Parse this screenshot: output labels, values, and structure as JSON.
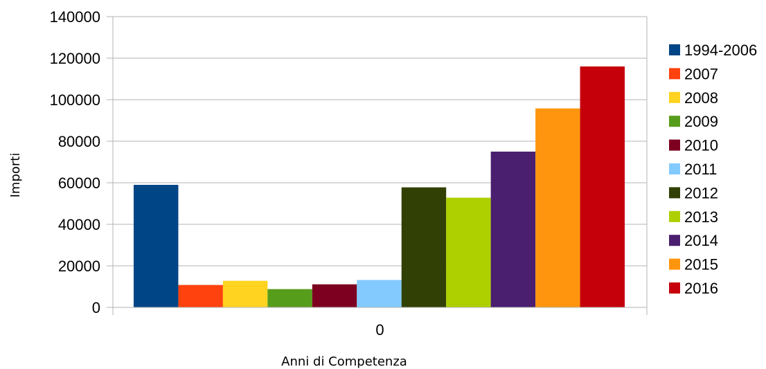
{
  "chart_data": {
    "type": "bar",
    "categories": [
      "0"
    ],
    "series": [
      {
        "name": "1994-2006",
        "color": "#004586",
        "values": [
          59000
        ]
      },
      {
        "name": "2007",
        "color": "#ff420e",
        "values": [
          10800
        ]
      },
      {
        "name": "2008",
        "color": "#ffd320",
        "values": [
          12800
        ]
      },
      {
        "name": "2009",
        "color": "#579d1c",
        "values": [
          8800
        ]
      },
      {
        "name": "2010",
        "color": "#7e0021",
        "values": [
          11100
        ]
      },
      {
        "name": "2011",
        "color": "#83caff",
        "values": [
          13200
        ]
      },
      {
        "name": "2012",
        "color": "#314004",
        "values": [
          57800
        ]
      },
      {
        "name": "2013",
        "color": "#aecf00",
        "values": [
          52800
        ]
      },
      {
        "name": "2014",
        "color": "#4b1f6f",
        "values": [
          75000
        ]
      },
      {
        "name": "2015",
        "color": "#ff950e",
        "values": [
          95800
        ]
      },
      {
        "name": "2016",
        "color": "#c5000b",
        "values": [
          116000
        ]
      }
    ],
    "xlabel": "Anni di Competenza",
    "ylabel": "Importi",
    "ylim": [
      0,
      140000
    ],
    "yticks": [
      0,
      20000,
      40000,
      60000,
      80000,
      100000,
      120000,
      140000
    ],
    "grid": true,
    "legend_position": "right"
  }
}
